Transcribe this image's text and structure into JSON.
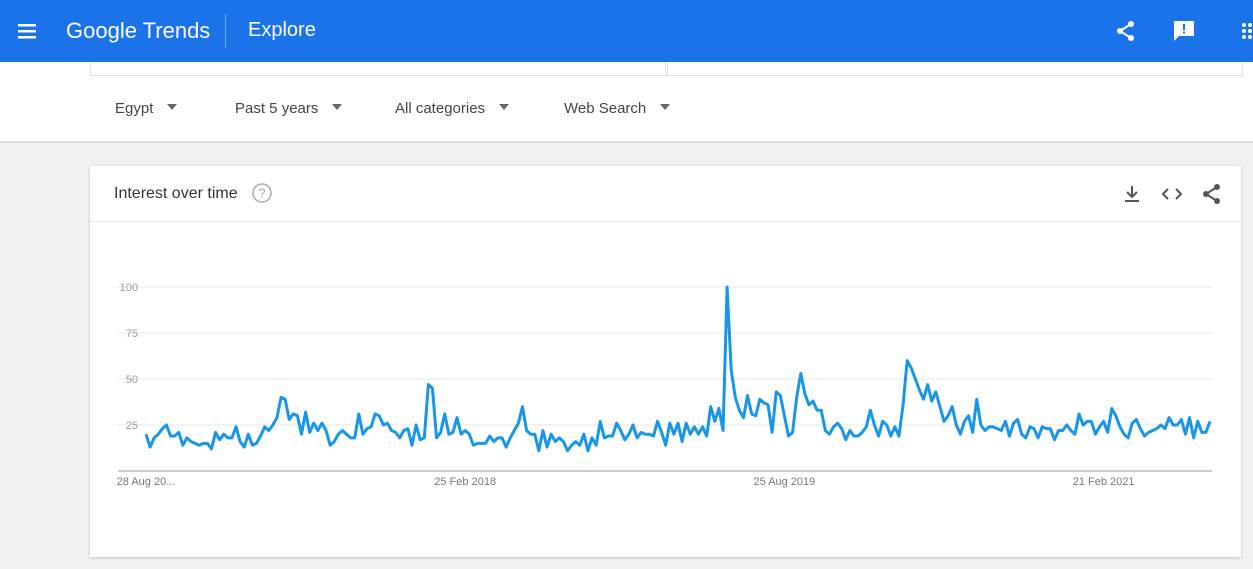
{
  "header": {
    "logo": "Google Trends",
    "section": "Explore"
  },
  "filters": [
    "Egypt",
    "Past 5 years",
    "All categories",
    "Web Search"
  ],
  "card": {
    "title": "Interest over time"
  },
  "chart_data": {
    "type": "line",
    "color": "#1a96e6",
    "grid": true,
    "ylim": [
      0,
      100
    ],
    "yticks": [
      25,
      50,
      75,
      100
    ],
    "categories": [
      "28 Aug 20...",
      null,
      null,
      null,
      null,
      null,
      null,
      null,
      null,
      null,
      null,
      null,
      null,
      null,
      null,
      null,
      null,
      null,
      null,
      null,
      null,
      null,
      null,
      null,
      null,
      null,
      null,
      null,
      null,
      null,
      null,
      null,
      null,
      null,
      null,
      null,
      null,
      null,
      null,
      null,
      null,
      null,
      null,
      null,
      null,
      null,
      null,
      null,
      null,
      null,
      null,
      null,
      null,
      null,
      null,
      null,
      null,
      null,
      null,
      null,
      null,
      null,
      null,
      null,
      null,
      null,
      null,
      null,
      null,
      null,
      null,
      null,
      null,
      null,
      null,
      null,
      null,
      null,
      "25 Feb 2018",
      null,
      null,
      null,
      null,
      null,
      null,
      null,
      null,
      null,
      null,
      null,
      null,
      null,
      null,
      null,
      null,
      null,
      null,
      null,
      null,
      null,
      null,
      null,
      null,
      null,
      null,
      null,
      null,
      null,
      null,
      null,
      null,
      null,
      null,
      null,
      null,
      null,
      null,
      null,
      null,
      null,
      null,
      null,
      null,
      null,
      null,
      null,
      null,
      null,
      null,
      null,
      null,
      null,
      null,
      null,
      null,
      null,
      null,
      null,
      null,
      null,
      null,
      null,
      null,
      null,
      null,
      null,
      null,
      null,
      null,
      null,
      null,
      null,
      null,
      null,
      null,
      null,
      "25 Aug 2019",
      null,
      null,
      null,
      null,
      null,
      null,
      null,
      null,
      null,
      null,
      null,
      null,
      null,
      null,
      null,
      null,
      null,
      null,
      null,
      null,
      null,
      null,
      null,
      null,
      null,
      null,
      null,
      null,
      null,
      null,
      null,
      null,
      null,
      null,
      null,
      null,
      null,
      null,
      null,
      null,
      null,
      null,
      null,
      null,
      null,
      null,
      null,
      null,
      null,
      null,
      null,
      null,
      null,
      null,
      null,
      null,
      null,
      null,
      null,
      null,
      null,
      null,
      null,
      null,
      null,
      null,
      null,
      null,
      null,
      null,
      null,
      null,
      null,
      null,
      null,
      null,
      null,
      "21 Feb 2021",
      null,
      null,
      null,
      null,
      null,
      null,
      null,
      null,
      null,
      null,
      null,
      null,
      null,
      null,
      null,
      null,
      null,
      null,
      null,
      null,
      null,
      null,
      null,
      null,
      null,
      null
    ],
    "values": [
      20,
      13,
      18,
      20,
      23,
      25,
      19,
      19,
      21,
      14,
      18,
      16,
      15,
      14,
      15,
      15,
      12,
      21,
      17,
      20,
      18,
      18,
      24,
      16,
      13,
      20,
      14,
      15,
      19,
      24,
      22,
      25,
      29,
      40,
      39,
      28,
      31,
      30,
      20,
      32,
      21,
      26,
      22,
      26,
      22,
      14,
      16,
      20,
      22,
      20,
      18,
      18,
      31,
      20,
      23,
      24,
      31,
      30,
      25,
      26,
      22,
      21,
      18,
      22,
      23,
      14,
      25,
      17,
      18,
      47,
      45,
      18,
      21,
      31,
      20,
      21,
      29,
      20,
      22,
      20,
      14,
      15,
      15,
      15,
      19,
      16,
      18,
      18,
      13,
      18,
      22,
      26,
      35,
      22,
      20,
      20,
      11,
      22,
      13,
      20,
      16,
      18,
      16,
      11,
      14,
      16,
      14,
      20,
      11,
      18,
      14,
      27,
      18,
      19,
      19,
      26,
      22,
      17,
      20,
      25,
      18,
      21,
      20,
      20,
      19,
      27,
      21,
      14,
      26,
      20,
      26,
      16,
      26,
      20,
      24,
      20,
      24,
      19,
      35,
      27,
      34,
      22,
      100,
      55,
      40,
      33,
      29,
      41,
      31,
      30,
      39,
      37,
      36,
      21,
      43,
      41,
      30,
      19,
      21,
      40,
      53,
      42,
      36,
      38,
      33,
      33,
      22,
      20,
      24,
      26,
      23,
      17,
      22,
      19,
      19,
      21,
      24,
      33,
      25,
      19,
      27,
      25,
      19,
      24,
      19,
      36,
      60,
      56,
      50,
      44,
      39,
      47,
      38,
      43,
      35,
      27,
      30,
      35,
      25,
      20,
      27,
      30,
      21,
      39,
      25,
      22,
      24,
      24,
      23,
      22,
      27,
      19,
      26,
      28,
      20,
      18,
      24,
      23,
      18,
      24,
      23,
      23,
      17,
      22,
      22,
      25,
      22,
      20,
      31,
      25,
      27,
      27,
      20,
      24,
      27,
      21,
      34,
      30,
      24,
      20,
      18,
      26,
      28,
      23,
      19,
      21,
      22,
      23,
      25,
      23,
      29,
      25,
      25,
      28,
      20,
      29,
      18,
      27,
      21,
      21,
      27
    ]
  }
}
